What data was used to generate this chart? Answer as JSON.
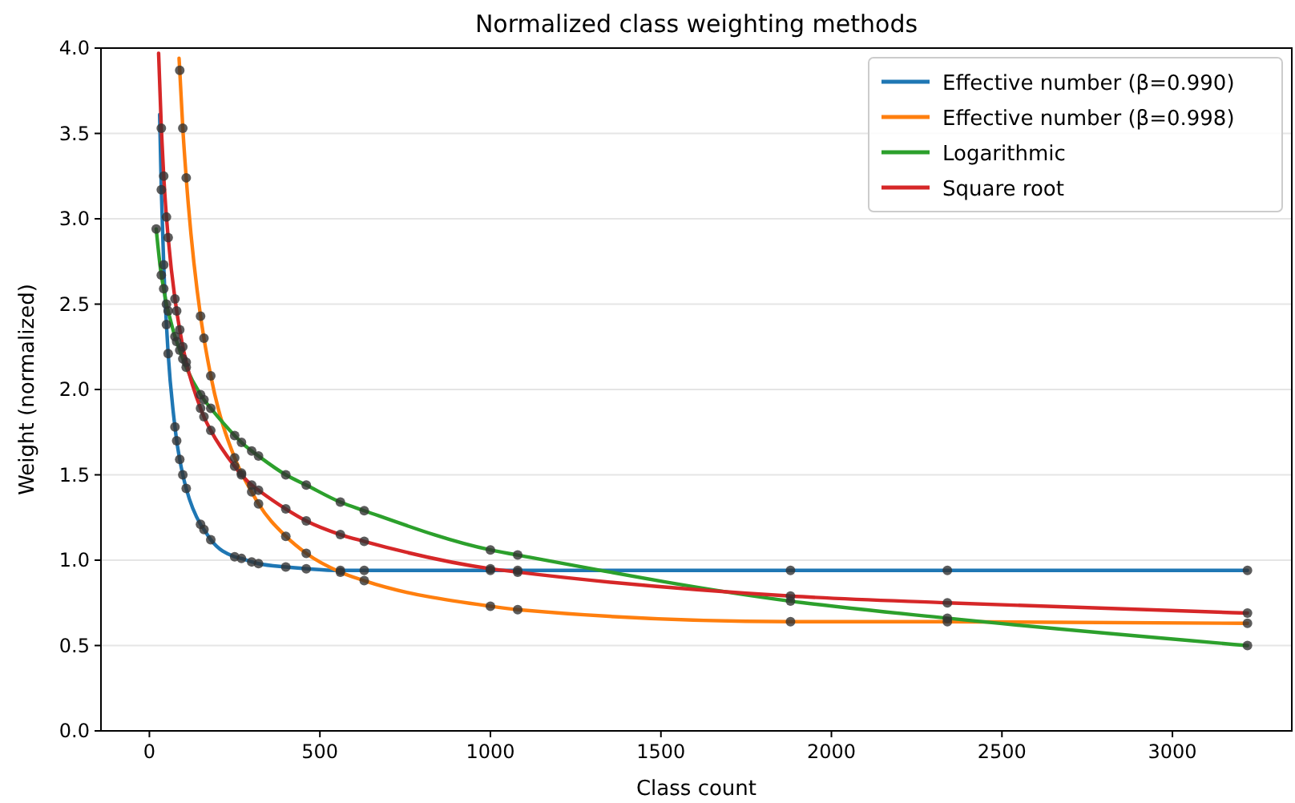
{
  "chart_data": {
    "type": "line",
    "title": "Normalized class weighting methods",
    "xlabel": "Class count",
    "ylabel": "Weight (normalized)",
    "xlim": [
      -142,
      3350
    ],
    "xticks": [
      0,
      500,
      1000,
      1500,
      2000,
      2500,
      3000
    ],
    "ylim": [
      0,
      4
    ],
    "yticks": [
      {
        "value": 0,
        "label": "0.0"
      },
      0.5,
      {
        "value": 1,
        "label": "1.0"
      },
      1.5,
      {
        "value": 2,
        "label": "2.0"
      },
      2.5,
      {
        "value": 3,
        "label": "3.0"
      },
      3.5,
      {
        "value": 4,
        "label": "4.0"
      }
    ],
    "grid": "y",
    "legend": "top right",
    "line_style": "solid",
    "series": [
      {
        "name": "Effective number (β=0.990)",
        "color": "#1f77b4",
        "x": [
          30,
          35,
          42,
          50,
          55,
          75,
          80,
          89,
          98,
          108,
          150,
          160,
          180,
          250,
          270,
          300,
          320,
          400,
          460,
          560,
          630,
          1000,
          1080,
          1880,
          2340,
          3220
        ],
        "values": [
          3.61,
          3.17,
          2.73,
          2.38,
          2.21,
          1.78,
          1.7,
          1.59,
          1.5,
          1.42,
          1.21,
          1.18,
          1.12,
          1.02,
          1.01,
          0.99,
          0.98,
          0.96,
          0.95,
          0.94,
          0.94,
          0.94,
          0.94,
          0.94,
          0.94,
          0.94
        ]
      },
      {
        "name": "Effective number (β=0.998)",
        "color": "#ff7f0e",
        "x": [
          87,
          89,
          98,
          108,
          150,
          160,
          180,
          250,
          270,
          300,
          320,
          400,
          460,
          560,
          630,
          1000,
          1080,
          1880,
          2340,
          3220
        ],
        "values": [
          3.94,
          3.87,
          3.53,
          3.24,
          2.43,
          2.3,
          2.08,
          1.6,
          1.51,
          1.4,
          1.33,
          1.14,
          1.04,
          0.93,
          0.88,
          0.73,
          0.71,
          0.64,
          0.64,
          0.63
        ]
      },
      {
        "name": "Logarithmic",
        "color": "#2ca02c",
        "x": [
          20,
          35,
          42,
          50,
          55,
          75,
          80,
          89,
          98,
          108,
          150,
          160,
          180,
          250,
          270,
          300,
          320,
          400,
          460,
          560,
          630,
          1000,
          1080,
          1880,
          2340,
          3220
        ],
        "values": [
          2.94,
          2.67,
          2.59,
          2.5,
          2.46,
          2.31,
          2.28,
          2.23,
          2.18,
          2.13,
          1.97,
          1.94,
          1.89,
          1.73,
          1.69,
          1.64,
          1.61,
          1.5,
          1.44,
          1.34,
          1.29,
          1.06,
          1.03,
          0.76,
          0.66,
          0.5
        ]
      },
      {
        "name": "Square root",
        "color": "#d62728",
        "x": [
          27,
          35,
          42,
          50,
          55,
          75,
          80,
          89,
          98,
          108,
          150,
          160,
          180,
          250,
          270,
          300,
          320,
          400,
          460,
          560,
          630,
          1000,
          1080,
          1880,
          2340,
          3220
        ],
        "values": [
          3.97,
          3.53,
          3.25,
          3.01,
          2.89,
          2.53,
          2.46,
          2.35,
          2.25,
          2.16,
          1.89,
          1.84,
          1.76,
          1.55,
          1.5,
          1.44,
          1.41,
          1.3,
          1.23,
          1.15,
          1.11,
          0.95,
          0.93,
          0.79,
          0.75,
          0.69
        ]
      },
      {
        "type": "scatter",
        "color": "#333333",
        "marker": "circle",
        "x": [
          35,
          42,
          50,
          55,
          75,
          80,
          89,
          98,
          108,
          150,
          160,
          180,
          250,
          270,
          300,
          320,
          400,
          460,
          560,
          630,
          1000,
          1080,
          1880,
          2340,
          3220,
          89,
          98,
          108,
          150,
          160,
          180,
          250,
          270,
          300,
          320,
          400,
          460,
          560,
          630,
          1000,
          1080,
          1880,
          2340,
          3220,
          20,
          35,
          42,
          50,
          55,
          75,
          80,
          89,
          98,
          108,
          150,
          160,
          180,
          250,
          270,
          300,
          320,
          400,
          460,
          560,
          630,
          1000,
          1080,
          1880,
          2340,
          3220,
          35,
          42,
          50,
          55,
          75,
          80,
          89,
          98,
          108,
          150,
          160,
          180,
          250,
          270,
          300,
          320,
          400,
          460,
          560,
          630,
          1000,
          1080,
          1880,
          2340,
          3220
        ],
        "values": [
          3.17,
          2.73,
          2.38,
          2.21,
          1.78,
          1.7,
          1.59,
          1.5,
          1.42,
          1.21,
          1.18,
          1.12,
          1.02,
          1.01,
          0.99,
          0.98,
          0.96,
          0.95,
          0.94,
          0.94,
          0.94,
          0.94,
          0.94,
          0.94,
          0.94,
          3.87,
          3.53,
          3.24,
          2.43,
          2.3,
          2.08,
          1.6,
          1.51,
          1.4,
          1.33,
          1.14,
          1.04,
          0.93,
          0.88,
          0.73,
          0.71,
          0.64,
          0.64,
          0.63,
          2.94,
          2.67,
          2.59,
          2.5,
          2.46,
          2.31,
          2.28,
          2.23,
          2.18,
          2.13,
          1.97,
          1.94,
          1.89,
          1.73,
          1.69,
          1.64,
          1.61,
          1.5,
          1.44,
          1.34,
          1.29,
          1.06,
          1.03,
          0.76,
          0.66,
          0.5,
          3.53,
          3.25,
          3.01,
          2.89,
          2.53,
          2.46,
          2.35,
          2.25,
          2.16,
          1.89,
          1.84,
          1.76,
          1.55,
          1.5,
          1.44,
          1.41,
          1.3,
          1.23,
          1.15,
          1.11,
          0.95,
          0.93,
          0.79,
          0.75,
          0.69
        ]
      }
    ]
  }
}
